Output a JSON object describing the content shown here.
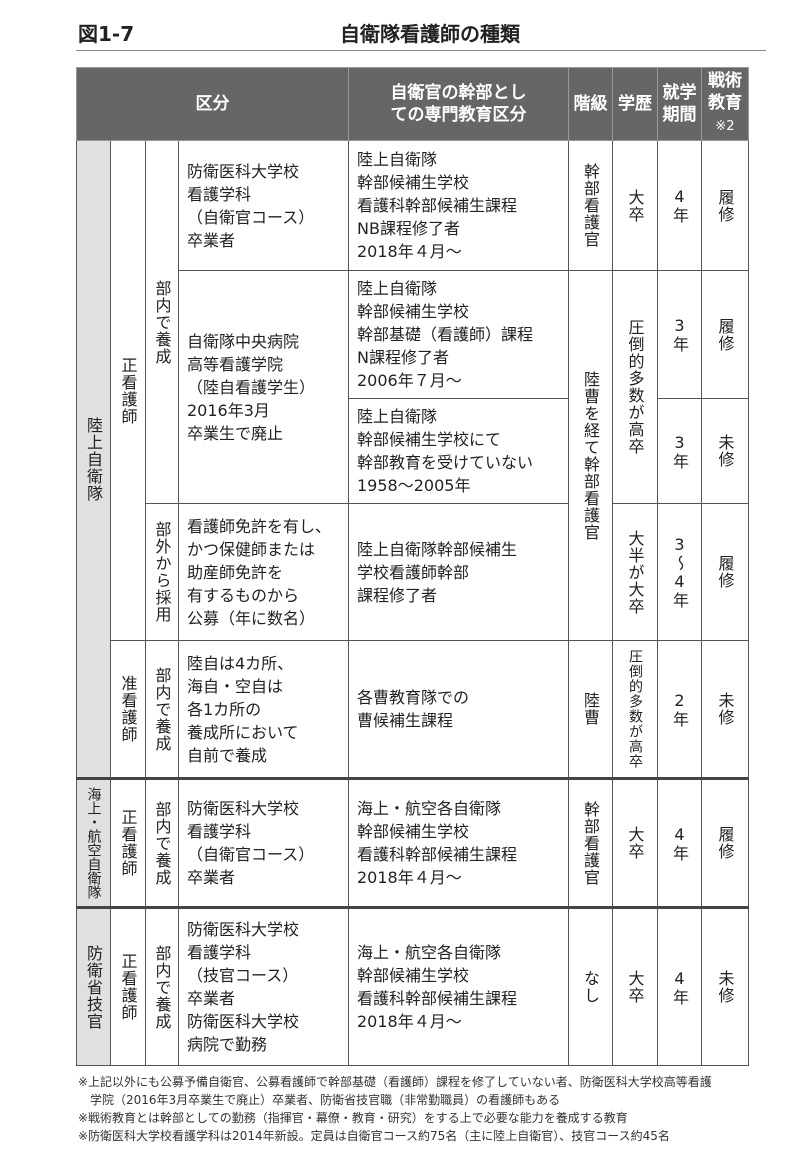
{
  "figure": {
    "number": "図1-7",
    "title": "自衛隊看護師の種類"
  },
  "header": {
    "category": "区分",
    "education": "自衛官の幹部としての専門教育区分",
    "rank": "階級",
    "academic": "学歴",
    "period": "就学期間",
    "tactical": "戦術教育",
    "tactical_note": "※2"
  },
  "groups": {
    "gsdf": "陸上自衛隊",
    "msdf_asdf": "海上・航空自衛隊",
    "mod": "防衛省技官"
  },
  "types": {
    "rn": "正看護師",
    "lpn": "准看護師"
  },
  "training": {
    "internal": "部内で養成",
    "external": "部外から採用"
  },
  "rows": [
    {
      "source": [
        "防衛医科大学校",
        "看護学科",
        "（自衛官コース）",
        "卒業者"
      ],
      "education": [
        "陸上自衛隊",
        "幹部候補生学校",
        "看護科幹部候補生課程",
        "NB課程修了者",
        "2018年４月～"
      ],
      "rank": "幹部看護官",
      "academic": "大卒",
      "period": "4年",
      "tactical": "履修"
    },
    {
      "source": [
        "自衛隊中央病院",
        "高等看護学院",
        "（陸自看護学生）",
        "2016年3月",
        "卒業生で廃止"
      ],
      "education": [
        "陸上自衛隊",
        "幹部候補生学校",
        "幹部基礎（看護師）課程",
        "N課程修了者",
        "2006年７月～"
      ],
      "rank": "陸曹を経て幹部看護官",
      "academic": "圧倒的多数が高卒",
      "period": "3年",
      "tactical": "履修"
    },
    {
      "education": [
        "陸上自衛隊",
        "幹部候補生学校にて",
        "幹部教育を受けていない",
        "1958～2005年"
      ],
      "period": "3年",
      "tactical": "未修"
    },
    {
      "source": [
        "看護師免許を有し、",
        "かつ保健師または",
        "助産師免許を",
        "有するものから",
        "公募（年に数名）"
      ],
      "education": [
        "陸上自衛隊幹部候補生",
        "学校看護師幹部",
        "課程修了者"
      ],
      "academic": "大半が大卒",
      "period": "3〜4年",
      "tactical": "履修"
    },
    {
      "source": [
        "陸自は4カ所、",
        "海自・空自は",
        "各1カ所の",
        "養成所において",
        "自前で養成"
      ],
      "education": [
        "各曹教育隊での",
        "曹候補生課程"
      ],
      "rank": "陸曹",
      "academic": "圧倒的多数が高卒",
      "period": "2年",
      "tactical": "未修"
    },
    {
      "source": [
        "防衛医科大学校",
        "看護学科",
        "（自衛官コース）",
        "卒業者"
      ],
      "education": [
        "海上・航空各自衛隊",
        "幹部候補生学校",
        "看護科幹部候補生課程",
        "2018年４月～"
      ],
      "rank": "幹部看護官",
      "academic": "大卒",
      "period": "4年",
      "tactical": "履修"
    },
    {
      "source": [
        "防衛医科大学校",
        "看護学科",
        "（技官コース）",
        "卒業者",
        "防衛医科大学校",
        "病院で勤務"
      ],
      "education": [
        "海上・航空各自衛隊",
        "幹部候補生学校",
        "看護科幹部候補生課程",
        "2018年４月～"
      ],
      "rank": "なし",
      "academic": "大卒",
      "period": "4年",
      "tactical": "未修"
    }
  ],
  "notes": [
    "※上記以外にも公募予備自衛官、公募看護師で幹部基礎（看護師）課程を修了していない者、防衛医科大学校高等看護",
    "学院（2016年3月卒業生で廃止）卒業者、防衛省技官職（非常勤職員）の看護師もある",
    "※戦術教育とは幹部としての勤務（指揮官・幕僚・教育・研究）をする上で必要な能力を養成する教育",
    "※防衛医科大学校看護学科は2014年新設。定員は自衛官コース約75名（主に陸上自衛官）、技官コース約45名"
  ]
}
